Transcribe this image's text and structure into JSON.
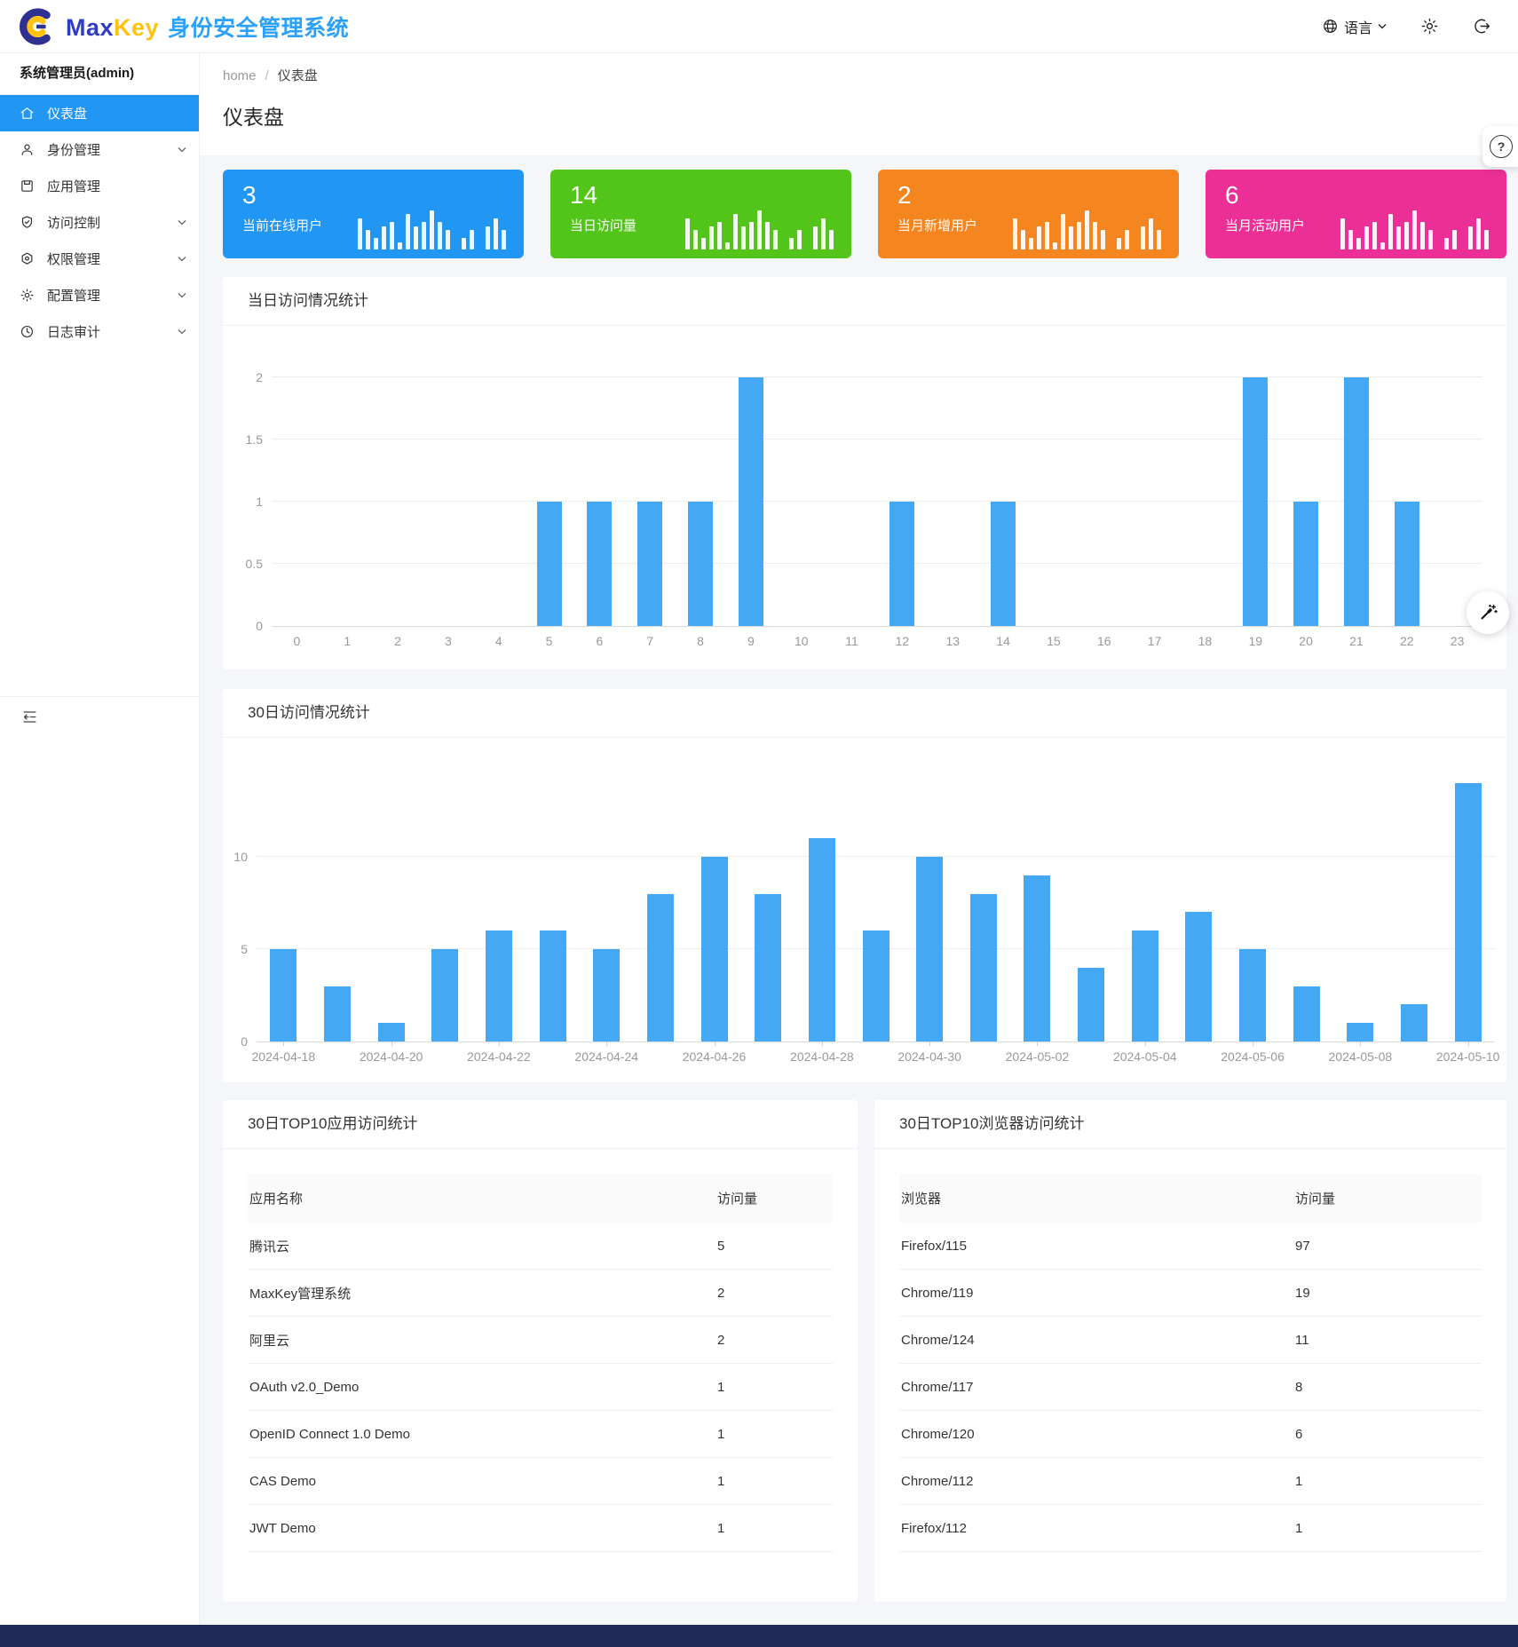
{
  "header": {
    "brand_max": "Max",
    "brand_key": "Key",
    "product_title": "身份安全管理系统",
    "language_label": "语言"
  },
  "sidebar": {
    "user_label": "系统管理员(admin)",
    "items": [
      {
        "slug": "dashboard",
        "label": "仪表盘",
        "icon": "home-icon",
        "active": true,
        "arrow": false
      },
      {
        "slug": "identity",
        "label": "身份管理",
        "icon": "user-icon",
        "active": false,
        "arrow": true
      },
      {
        "slug": "apps",
        "label": "应用管理",
        "icon": "app-icon",
        "active": false,
        "arrow": false
      },
      {
        "slug": "access",
        "label": "访问控制",
        "icon": "shield-icon",
        "active": false,
        "arrow": true
      },
      {
        "slug": "permission",
        "label": "权限管理",
        "icon": "badge-icon",
        "active": false,
        "arrow": true
      },
      {
        "slug": "config",
        "label": "配置管理",
        "icon": "gear-icon",
        "active": false,
        "arrow": true
      },
      {
        "slug": "audit",
        "label": "日志审计",
        "icon": "clock-icon",
        "active": false,
        "arrow": true
      }
    ]
  },
  "breadcrumb": {
    "home": "home",
    "separator": "/",
    "current": "仪表盘"
  },
  "page": {
    "title": "仪表盘"
  },
  "stat_cards": [
    {
      "slug": "online-users",
      "value": "3",
      "label": "当前在线用户",
      "color": "#2196f3"
    },
    {
      "slug": "daily-visits",
      "value": "14",
      "label": "当日访问量",
      "color": "#52c41a"
    },
    {
      "slug": "month-new-users",
      "value": "2",
      "label": "当月新增用户",
      "color": "#f5861f"
    },
    {
      "slug": "month-active-users",
      "value": "6",
      "label": "当月活动用户",
      "color": "#eb2f96"
    }
  ],
  "mini_bars": [
    7,
    4,
    2,
    5,
    6,
    1,
    8,
    5,
    6,
    9,
    6,
    4,
    0,
    2,
    4,
    0,
    5,
    7,
    4
  ],
  "chart_data": [
    {
      "type": "bar",
      "title": "当日访问情况统计",
      "categories": [
        "0",
        "1",
        "2",
        "3",
        "4",
        "5",
        "6",
        "7",
        "8",
        "9",
        "10",
        "11",
        "12",
        "13",
        "14",
        "15",
        "16",
        "17",
        "18",
        "19",
        "20",
        "21",
        "22",
        "23"
      ],
      "values": [
        0,
        0,
        0,
        0,
        0,
        1,
        1,
        1,
        1,
        2,
        0,
        0,
        1,
        0,
        1,
        0,
        0,
        0,
        0,
        2,
        1,
        2,
        1,
        0
      ],
      "xlabel": "",
      "ylabel": "",
      "ylim": [
        0,
        2
      ],
      "yticks": [
        0,
        0.5,
        1,
        1.5,
        2
      ],
      "bar_color": "#45a8f5",
      "grid": true,
      "legend": "none"
    },
    {
      "type": "bar",
      "title": "30日访问情况统计",
      "categories": [
        "2024-04-18",
        "2024-04-19",
        "2024-04-20",
        "2024-04-21",
        "2024-04-22",
        "2024-04-23",
        "2024-04-24",
        "2024-04-25",
        "2024-04-26",
        "2024-04-27",
        "2024-04-28",
        "2024-04-29",
        "2024-04-30",
        "2024-05-01",
        "2024-05-02",
        "2024-05-03",
        "2024-05-04",
        "2024-05-05",
        "2024-05-06",
        "2024-05-07",
        "2024-05-08",
        "2024-05-09",
        "2024-05-10"
      ],
      "values": [
        5,
        3,
        1,
        5,
        6,
        6,
        5,
        8,
        10,
        8,
        11,
        6,
        10,
        8,
        9,
        4,
        6,
        7,
        5,
        3,
        1,
        2,
        14
      ],
      "xlabel": "",
      "ylabel": "",
      "ylim": [
        0,
        15
      ],
      "yticks": [
        0,
        5,
        10
      ],
      "label_every": 2,
      "bar_color": "#45a8f5",
      "grid": true,
      "legend": "none"
    }
  ],
  "tables": [
    {
      "title": "30日TOP10应用访问统计",
      "headers": [
        "应用名称",
        "访问量"
      ],
      "rows": [
        [
          "腾讯云",
          "5"
        ],
        [
          "MaxKey管理系统",
          "2"
        ],
        [
          "阿里云",
          "2"
        ],
        [
          "OAuth v2.0_Demo",
          "1"
        ],
        [
          "OpenID Connect 1.0 Demo",
          "1"
        ],
        [
          "CAS Demo",
          "1"
        ],
        [
          "JWT Demo",
          "1"
        ]
      ]
    },
    {
      "title": "30日TOP10浏览器访问统计",
      "headers": [
        "浏览器",
        "访问量"
      ],
      "rows": [
        [
          "Firefox/115",
          "97"
        ],
        [
          "Chrome/119",
          "19"
        ],
        [
          "Chrome/124",
          "11"
        ],
        [
          "Chrome/117",
          "8"
        ],
        [
          "Chrome/120",
          "6"
        ],
        [
          "Chrome/112",
          "1"
        ],
        [
          "Firefox/112",
          "1"
        ]
      ]
    }
  ],
  "floating": {
    "help_text": "?"
  }
}
